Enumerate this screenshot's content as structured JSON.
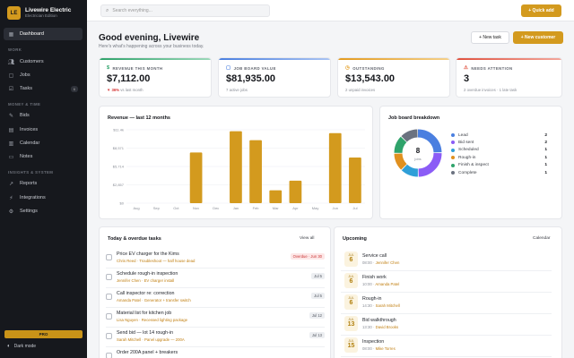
{
  "brand": {
    "initials": "LE",
    "name": "Livewire Electric",
    "subtitle": "Electrician Edition"
  },
  "sidebar": {
    "dashboard": "Dashboard",
    "work_label": "WORK",
    "customers": "Customers",
    "jobs": "Jobs",
    "tasks": "Tasks",
    "tasks_badge": "6",
    "money_label": "MONEY & TIME",
    "bids": "Bids",
    "invoices": "Invoices",
    "calendar": "Calendar",
    "notes": "Notes",
    "insights_label": "INSIGHTS & SYSTEM",
    "reports": "Reports",
    "integrations": "Integrations",
    "settings": "Settings",
    "pro": "PRO",
    "dark_mode": "Dark mode"
  },
  "topbar": {
    "search_placeholder": "Search everything...",
    "quick_add": "+ Quick add"
  },
  "header": {
    "greeting": "Good evening, Livewire",
    "subtitle": "Here's what's happening across your business today.",
    "new_task": "+ New task",
    "new_customer": "+ New customer"
  },
  "kpis": [
    {
      "label": "REVENUE THIS MONTH",
      "value": "$7,112.00",
      "sub_neg": "▼ 36%",
      "sub": "vs last month",
      "color": "#2fa36b"
    },
    {
      "label": "JOB BOARD VALUE",
      "value": "$81,935.00",
      "sub": "7 active jobs",
      "color": "#4a7fe0"
    },
    {
      "label": "OUTSTANDING",
      "value": "$13,543.00",
      "sub": "2 unpaid invoices",
      "color": "#e39b1f"
    },
    {
      "label": "NEEDS ATTENTION",
      "value": "3",
      "sub": "2 overdue invoices · 1 late task",
      "color": "#e0523f"
    }
  ],
  "revenue": {
    "title": "Revenue — last 12 months"
  },
  "chart_data": {
    "type": "bar",
    "title": "Revenue — last 12 months",
    "categories": [
      "Aug",
      "Sep",
      "Oct",
      "Nov",
      "Dec",
      "Jan",
      "Feb",
      "Mar",
      "Apr",
      "May",
      "Jun",
      "Jul"
    ],
    "values": [
      0,
      0,
      0,
      7900,
      0,
      11200,
      9800,
      2000,
      3500,
      0,
      10900,
      7112
    ],
    "yticks": [
      "$0",
      "$2,857",
      "$5,714",
      "$8,571",
      "$11.4k"
    ],
    "ylim": [
      0,
      11428
    ],
    "color": "#d39a1e"
  },
  "breakdown": {
    "title": "Job board breakdown",
    "center_value": "8",
    "center_label": "jobs",
    "items": [
      {
        "label": "Lead",
        "count": "2",
        "color": "#4a7fe0"
      },
      {
        "label": "Bid sent",
        "count": "2",
        "color": "#8b5cf6"
      },
      {
        "label": "Scheduled",
        "count": "1",
        "color": "#2f9fd8"
      },
      {
        "label": "Rough-in",
        "count": "1",
        "color": "#e0901f"
      },
      {
        "label": "Finish & inspect",
        "count": "1",
        "color": "#2fa36b"
      },
      {
        "label": "Complete",
        "count": "1",
        "color": "#6b7280"
      }
    ]
  },
  "tasks": {
    "title": "Today & overdue tasks",
    "view_all": "View all",
    "items": [
      {
        "title": "Price EV charger for the Kims",
        "meta": "Chris Reed · Troubleshoot — half house dead",
        "due": "Overdue · Jun 30",
        "overdue": true
      },
      {
        "title": "Schedule rough-in inspection",
        "meta": "Jennifer Chen · EV charger install",
        "due": "Jul 5",
        "overdue": false
      },
      {
        "title": "Call inspector re: correction",
        "meta": "Amanda Patel · Generator + transfer switch",
        "due": "Jul 5",
        "overdue": false
      },
      {
        "title": "Material list for kitchen job",
        "meta": "Lisa Nguyen · Recessed lighting package",
        "due": "Jul 12",
        "overdue": false
      },
      {
        "title": "Send bid — lot 14 rough-in",
        "meta": "Sarah Mitchell · Panel upgrade — 200A",
        "due": "Jul 13",
        "overdue": false
      },
      {
        "title": "Order 200A panel + breakers",
        "meta": "",
        "due": "",
        "overdue": false
      }
    ]
  },
  "upcoming": {
    "title": "Upcoming",
    "calendar_link": "Calendar",
    "items": [
      {
        "month": "JUL",
        "day": "6",
        "title": "Service call",
        "time": "08:00 ·",
        "who": "Jennifer Chen"
      },
      {
        "month": "JUL",
        "day": "6",
        "title": "Finish work",
        "time": "10:00 ·",
        "who": "Amanda Patel"
      },
      {
        "month": "JUL",
        "day": "6",
        "title": "Rough-in",
        "time": "14:30 ·",
        "who": "Sarah Mitchell"
      },
      {
        "month": "JUL",
        "day": "13",
        "title": "Bid walkthrough",
        "time": "13:30 ·",
        "who": "David Brooks"
      },
      {
        "month": "JUL",
        "day": "15",
        "title": "Inspection",
        "time": "08:00 ·",
        "who": "Mike Torres"
      }
    ]
  }
}
